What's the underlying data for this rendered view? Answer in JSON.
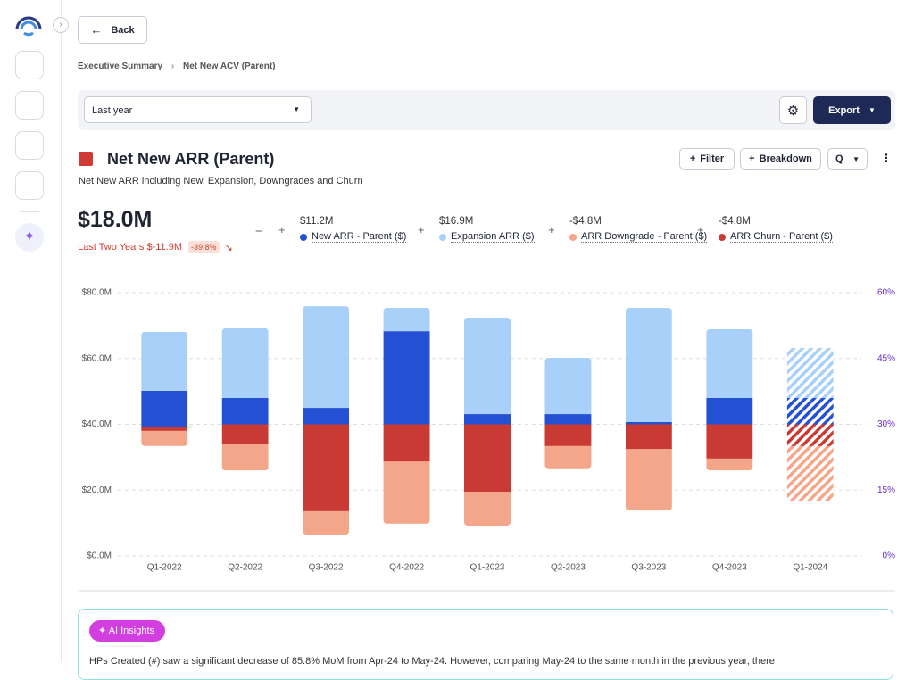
{
  "back": "Back",
  "breadcrumb": [
    "Executive Summary",
    "Net New ACV (Parent)"
  ],
  "period": "Last year",
  "export": "Export",
  "title": "Net New ARR (Parent)",
  "subtitle": "Net New ARR including New, Expansion, Downgrades and Churn",
  "buttons": [
    "Filter",
    "Breakdown",
    "Q"
  ],
  "total": "$18.0M",
  "comparison": "Last Two Years $-11.9M",
  "change": "-39.8%",
  "metric_values": [
    "$11.2M",
    "$16.9M",
    "-$4.8M",
    "-$4.8M"
  ],
  "chart_data": {
    "type": "floating_stacked_bar",
    "categories": [
      "Q1-2022",
      "Q2-2022",
      "Q3-2022",
      "Q4-2022",
      "Q1-2023",
      "Q2-2023",
      "Q3-2023",
      "Q4-2023",
      "Q1-2024"
    ],
    "series": [
      {
        "name": "New ARR - Parent ($)",
        "color": "#2450d3",
        "values": [
          [
            39.3,
            50.2
          ],
          [
            40,
            48
          ],
          [
            40,
            45
          ],
          [
            40,
            68.3
          ],
          [
            40,
            43.1
          ],
          [
            40,
            43.1
          ],
          [
            40,
            40.7
          ],
          [
            40,
            48
          ],
          [
            40,
            48
          ]
        ]
      },
      {
        "name": "Expansion ARR ($)",
        "color": "#a8d0f8",
        "values": [
          [
            50.2,
            68.1
          ],
          [
            48,
            69.2
          ],
          [
            45,
            75.9
          ],
          [
            68.3,
            75.4
          ],
          [
            43.1,
            72.4
          ],
          [
            43.1,
            60.2
          ],
          [
            40.7,
            75.4
          ],
          [
            48,
            68.9
          ],
          [
            48,
            63.2
          ]
        ]
      },
      {
        "name": "ARR Downgrade - Parent ($)",
        "color": "#f4a68a",
        "values": [
          [
            33.4,
            38
          ],
          [
            26,
            33.9
          ],
          [
            6.5,
            13.6
          ],
          [
            9.8,
            28.7
          ],
          [
            9.2,
            19.5
          ],
          [
            26.6,
            33.4
          ],
          [
            13.8,
            32.5
          ],
          [
            26,
            29.6
          ],
          [
            16.8,
            33.4
          ]
        ]
      },
      {
        "name": "ARR Churn - Parent ($)",
        "color": "#c93a35",
        "values": [
          [
            38,
            39.3
          ],
          [
            33.9,
            40
          ],
          [
            13.6,
            40
          ],
          [
            28.7,
            40
          ],
          [
            19.5,
            40
          ],
          [
            33.4,
            40
          ],
          [
            32.5,
            40
          ],
          [
            29.6,
            40
          ],
          [
            33.4,
            40
          ]
        ]
      }
    ],
    "hatched": [
      false,
      false,
      false,
      false,
      false,
      false,
      false,
      false,
      true
    ],
    "ylim": [
      0,
      80
    ],
    "yticks": [
      {
        "value": 0,
        "label": "$0.0M"
      },
      {
        "value": 20,
        "label": "$20.0M"
      },
      {
        "value": 40,
        "label": "$40.0M"
      },
      {
        "value": 60,
        "label": "$60.0M"
      },
      {
        "value": 80,
        "label": "$80.0M"
      }
    ],
    "y2lim": [
      0,
      60
    ],
    "y2ticks": [
      {
        "value": 0,
        "label": "0%"
      },
      {
        "value": 15,
        "label": "15%"
      },
      {
        "value": 30,
        "label": "30%"
      },
      {
        "value": 45,
        "label": "45%"
      },
      {
        "value": 60,
        "label": "60%"
      }
    ],
    "grid": true
  },
  "insights": {
    "label": "AI Insights",
    "text": "HPs Created (#) saw a significant decrease of 85.8% MoM from Apr-24 to May-24. However, comparing May-24 to the same month in the previous year, there"
  }
}
